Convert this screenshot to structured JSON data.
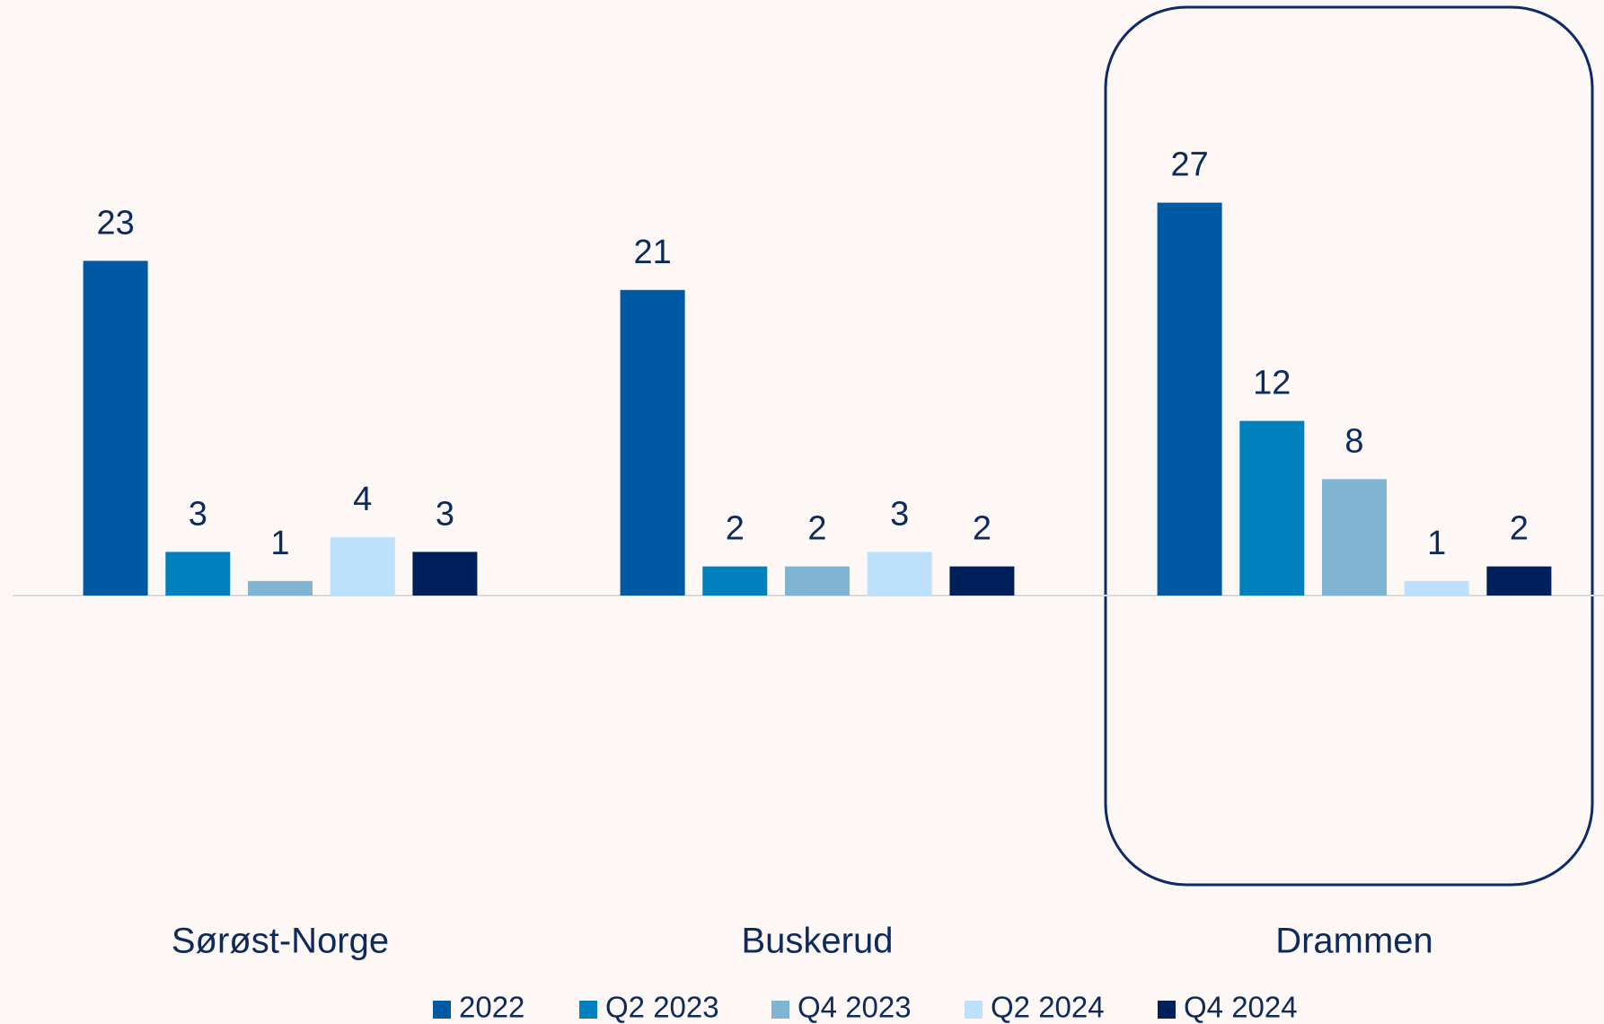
{
  "chart_data": {
    "type": "bar",
    "categories": [
      "Sørøst-Norge",
      "Buskerud",
      "Drammen"
    ],
    "series": [
      {
        "name": "2022",
        "color": "#005aa3",
        "values": [
          23,
          21,
          27
        ]
      },
      {
        "name": "Q2 2023",
        "color": "#0080bd",
        "values": [
          3,
          2,
          12
        ]
      },
      {
        "name": "Q4 2023",
        "color": "#7fb4d3",
        "values": [
          1,
          2,
          8
        ]
      },
      {
        "name": "Q2 2024",
        "color": "#bde0fb",
        "values": [
          4,
          3,
          1
        ]
      },
      {
        "name": "Q4 2024",
        "color": "#00205b",
        "values": [
          3,
          2,
          2
        ]
      }
    ],
    "legend": "bottom"
  }
}
